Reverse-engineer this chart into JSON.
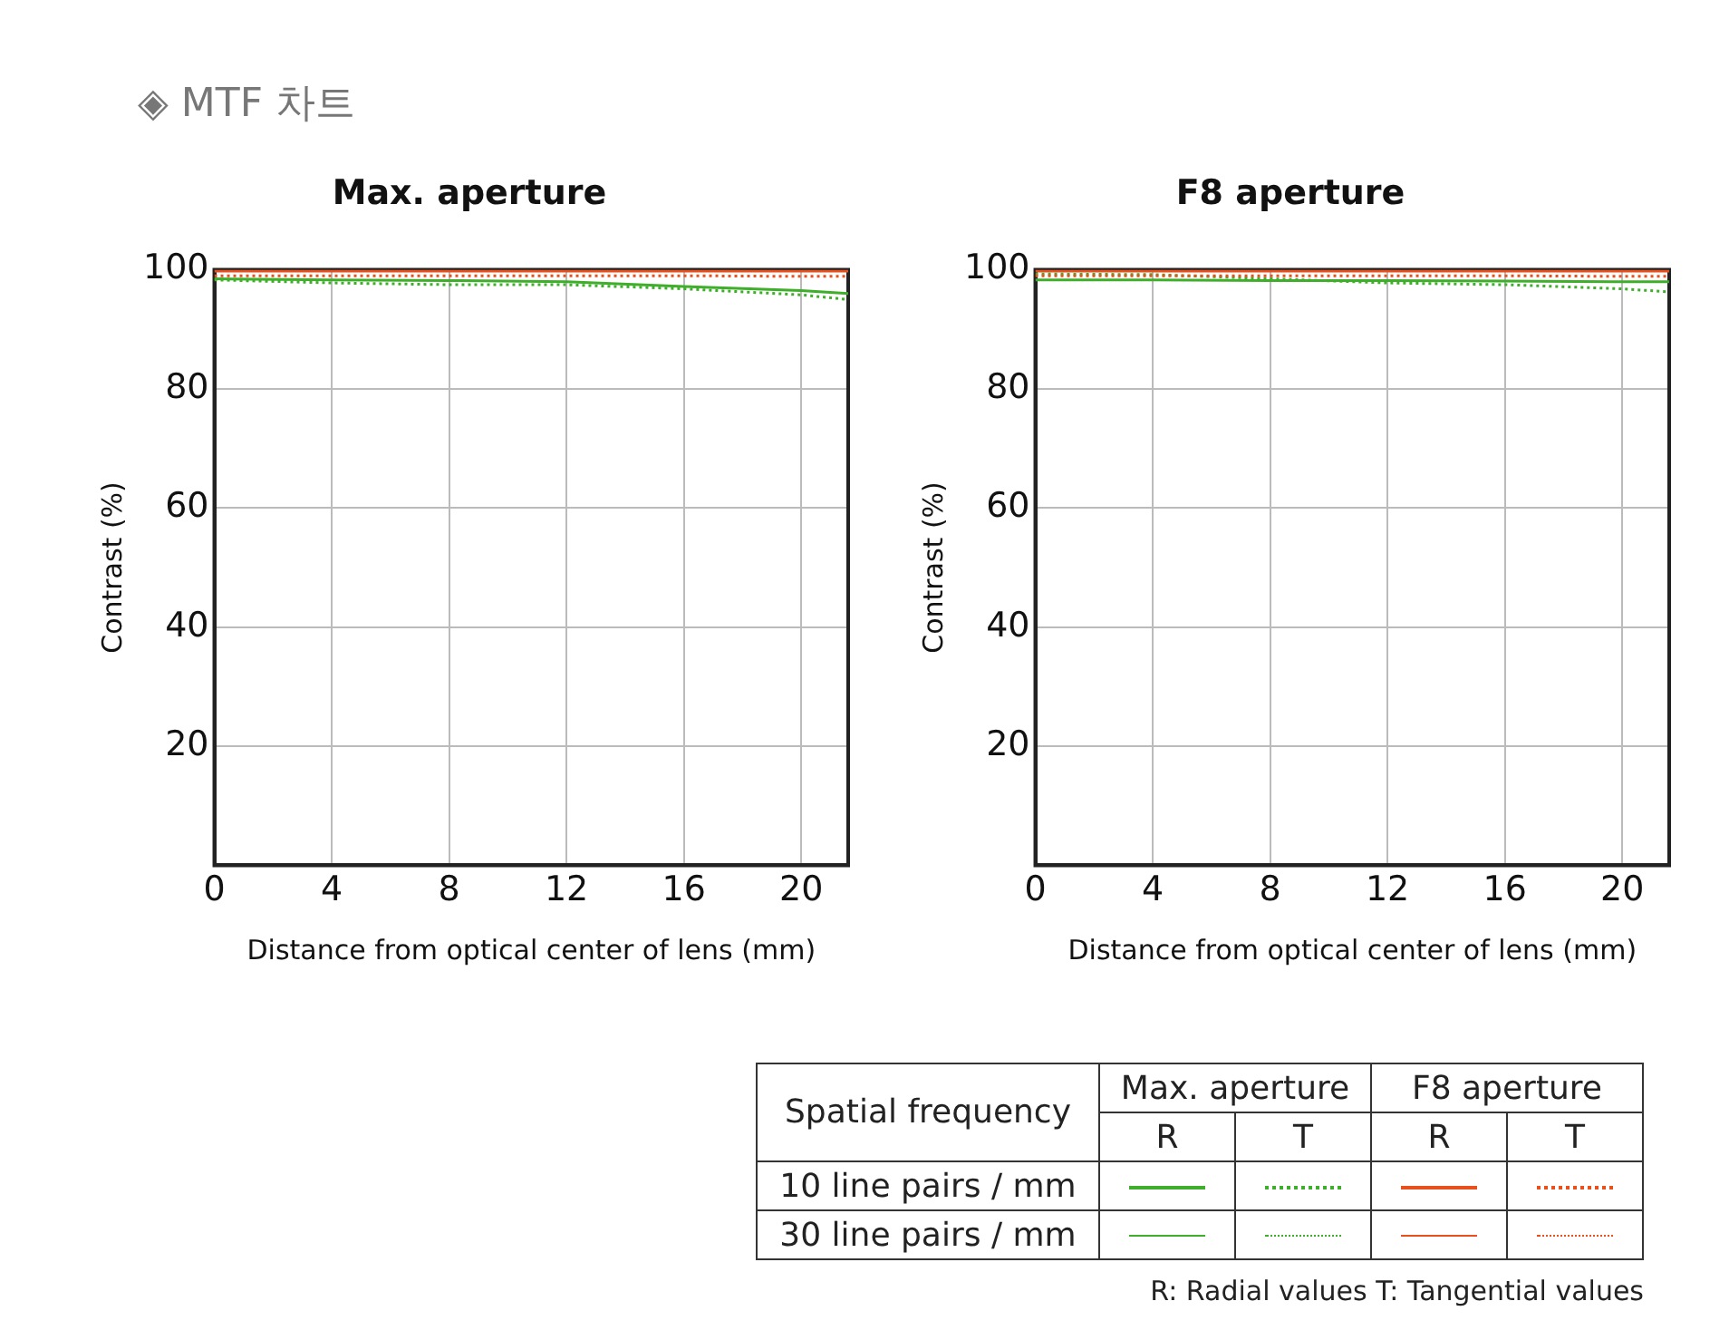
{
  "chart_data": [
    {
      "type": "line",
      "title": "Max. aperture",
      "xlabel": "Distance from optical center of lens (mm)",
      "ylabel": "Contrast (%)",
      "annotations": [
        "◈ MTF 차트"
      ],
      "x": [
        0,
        4,
        8,
        12,
        16,
        20,
        21.6
      ],
      "xlim": [
        0,
        21.6
      ],
      "xticks": [
        0,
        4,
        8,
        12,
        16,
        20
      ],
      "ylim": [
        0,
        100
      ],
      "yticks": [
        20,
        40,
        60,
        80,
        100
      ],
      "grid": true,
      "legend": false,
      "marker": "none",
      "series": [
        {
          "color": "#3fae2a",
          "line_style": "solid",
          "values": [
            98.5,
            98.3,
            98.2,
            98.0,
            97.2,
            96.5,
            96.0
          ]
        },
        {
          "color": "#3fae2a",
          "line_style": "dotted",
          "values": [
            98.3,
            97.8,
            97.5,
            97.5,
            96.8,
            95.8,
            95.0
          ]
        },
        {
          "color": "#e8501e",
          "line_style": "solid",
          "values": [
            99.8,
            99.8,
            99.8,
            99.8,
            99.8,
            99.8,
            99.8
          ]
        },
        {
          "color": "#e8501e",
          "line_style": "dotted",
          "values": [
            99.0,
            99.0,
            99.0,
            99.0,
            99.0,
            98.9,
            98.9
          ]
        }
      ]
    },
    {
      "type": "line",
      "title": "F8 aperture",
      "xlabel": "Distance from optical center of lens (mm)",
      "ylabel": "Contrast (%)",
      "x": [
        0,
        4,
        8,
        12,
        16,
        20,
        21.6
      ],
      "xlim": [
        0,
        21.6
      ],
      "xticks": [
        0,
        4,
        8,
        12,
        16,
        20
      ],
      "ylim": [
        0,
        100
      ],
      "yticks": [
        20,
        40,
        60,
        80,
        100
      ],
      "grid": true,
      "legend": false,
      "marker": "none",
      "series": [
        {
          "color": "#3fae2a",
          "line_style": "solid",
          "values": [
            98.3,
            98.3,
            98.2,
            98.2,
            98.1,
            98.0,
            98.0
          ]
        },
        {
          "color": "#3fae2a",
          "line_style": "dotted",
          "values": [
            99.3,
            99.2,
            98.5,
            97.8,
            97.5,
            96.8,
            96.3
          ]
        },
        {
          "color": "#e8501e",
          "line_style": "solid",
          "values": [
            99.8,
            99.8,
            99.8,
            99.8,
            99.8,
            99.8,
            99.8
          ]
        },
        {
          "color": "#e8501e",
          "line_style": "dotted",
          "values": [
            99.0,
            99.0,
            99.0,
            99.0,
            99.0,
            98.9,
            98.9
          ]
        }
      ]
    },
    {
      "type": "other",
      "annotations": [
        "Spatial frequency",
        "Max. aperture",
        "F8 aperture",
        "R",
        "T",
        "R",
        "T",
        "10 line pairs / mm",
        "30 line pairs / mm",
        "R: Radial values  T: Tangential values"
      ]
    }
  ]
}
